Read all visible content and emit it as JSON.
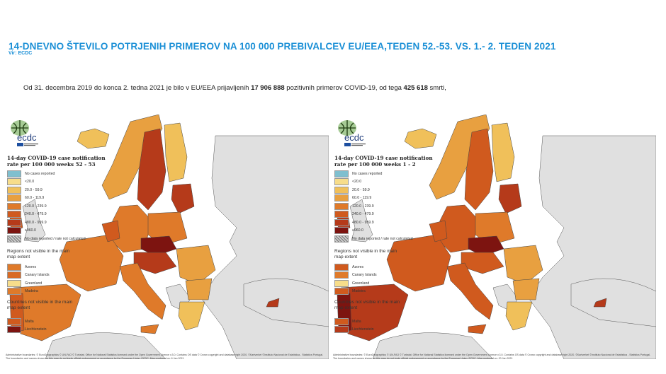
{
  "header": {
    "title": "14-DNEVNO ŠTEVILO POTRJENIH PRIMEROV NA 100 000 PREBIVALCEV EU/EEA,TEDEN 52.-53. VS. 1.- 2. TEDEN 2021",
    "source": "Vir: ECDC"
  },
  "summary": {
    "text_1": "Od 31.  decembra 2019  do konca 2. tedna 2021  je bilo v EU/EEA prijavljenih ",
    "cases": "17 906  888",
    "text_2": "  pozitivnih primerov COVID-19, od tega ",
    "deaths": "425  618",
    "text_3": " smrti,"
  },
  "maps": [
    {
      "logo_text": "ecdc",
      "legend_title": "14-day COVID-19 case notification rate per 100 000 weeks 52 - 53",
      "legend": [
        {
          "label": "No cases reported",
          "color": "#7fbfcf"
        },
        {
          "label": "<20.0",
          "color": "#f7dd8a"
        },
        {
          "label": "20.0 - 59.9",
          "color": "#f0c05a"
        },
        {
          "label": "60.0 - 119.9",
          "color": "#e8a040"
        },
        {
          "label": "120.0 - 239.9",
          "color": "#df7a2a"
        },
        {
          "label": "240.0 - 479.9",
          "color": "#d05a1e"
        },
        {
          "label": "480.0 - 959.9",
          "color": "#b53a1a"
        },
        {
          "label": "≥960.0",
          "color": "#7d1410"
        },
        {
          "label": "No data reported / rate not calculated",
          "color": "hatch"
        }
      ],
      "regions_heading": "Regions not visible in the main map extent",
      "regions": [
        {
          "label": "Azores",
          "color": "#df7a2a"
        },
        {
          "label": "Canary Islands",
          "color": "#d86a24"
        },
        {
          "label": "Greenland",
          "color": "#f7dd8a"
        },
        {
          "label": "Madeira",
          "color": "#df7a2a"
        }
      ],
      "countries_heading": "Countries not visible in the main map extent",
      "countries": [
        {
          "label": "Malta",
          "color": "#d05a1e"
        },
        {
          "label": "Liechtenstein",
          "color": "#7d1410"
        }
      ],
      "attribution": "Administrative boundaries: © EuroGeographics © UN-FAO © Turkstat. Office for National Statistics licensed under the Open Government Licence v.3.0. Contains OS data © Crown copyright and database right 2020. ©Kartverket ©Instituto Nacional de Estatística - Statistics Portugal. The boundaries and names shown on this map do not imply official endorsement or acceptance by the European Union. ECDC. Map produced on: 6 Jan 2021"
    },
    {
      "logo_text": "ecdc",
      "legend_title": "14-day COVID-19 case notification rate per 100 000 weeks 1 - 2",
      "legend": [
        {
          "label": "No cases reported",
          "color": "#7fbfcf"
        },
        {
          "label": "<20.0",
          "color": "#f7dd8a"
        },
        {
          "label": "20.0 - 59.9",
          "color": "#f0c05a"
        },
        {
          "label": "60.0 - 119.9",
          "color": "#e8a040"
        },
        {
          "label": "120.0 - 239.9",
          "color": "#df7a2a"
        },
        {
          "label": "240.0 - 479.9",
          "color": "#d05a1e"
        },
        {
          "label": "480.0 - 959.9",
          "color": "#b53a1a"
        },
        {
          "label": "≥960.0",
          "color": "#7d1410"
        },
        {
          "label": "No data reported / rate not calculated",
          "color": "hatch"
        }
      ],
      "regions_heading": "Regions not visible in the main map extent",
      "regions": [
        {
          "label": "Azores",
          "color": "#d05a1e"
        },
        {
          "label": "Canary Islands",
          "color": "#df7a2a"
        },
        {
          "label": "Greenland",
          "color": "#f7dd8a"
        },
        {
          "label": "Madeira",
          "color": "#d05a1e"
        }
      ],
      "countries_heading": "Countries not visible in the main map extent",
      "countries": [
        {
          "label": "Malta",
          "color": "#d05a1e"
        },
        {
          "label": "Liechtenstein",
          "color": "#b53a1a"
        }
      ],
      "attribution": "Administrative boundaries: © EuroGeographics © UN-FAO © Turkstat. Office for National Statistics licensed under the Open Government Licence v.3.0. Contains OS data © Crown copyright and database right 2020. ©Kartverket ©Instituto Nacional de Estatística - Statistics Portugal. The boundaries and names shown on this map do not imply official endorsement or acceptance by the European Union. ECDC. Map produced on: 20 Jan 2021"
    }
  ]
}
